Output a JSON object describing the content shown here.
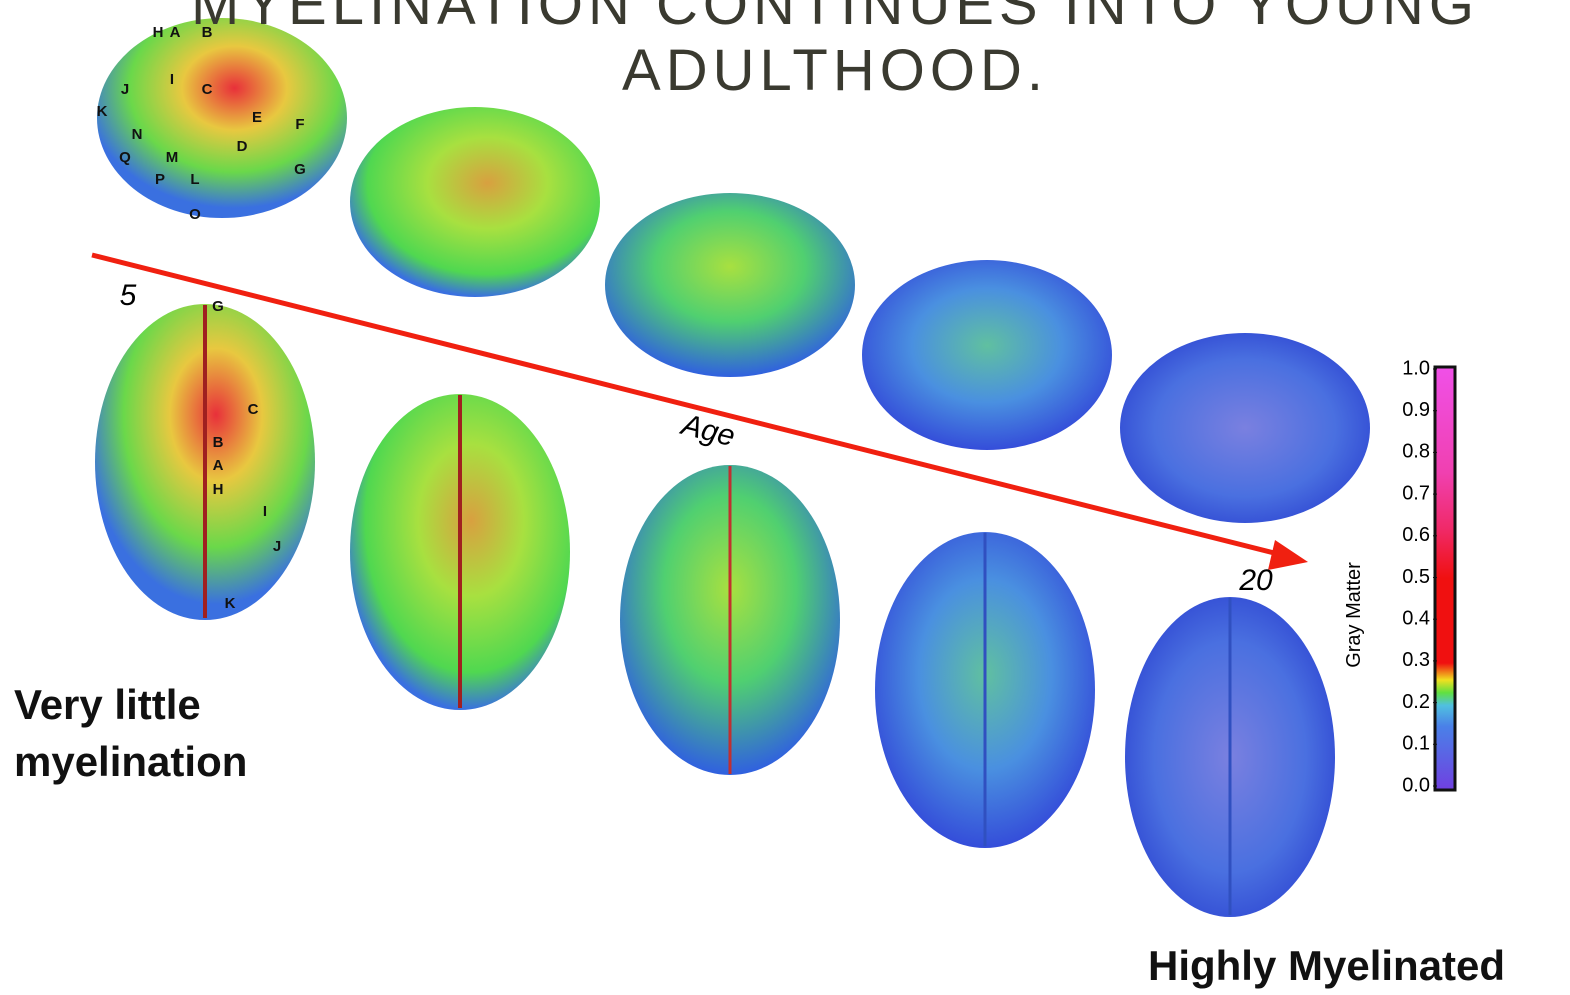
{
  "title": "MYELINATION CONTINUES INTO YOUNG ADULTHOOD.",
  "arrow": {
    "start_label": "5",
    "axis_label": "Age",
    "end_label": "20"
  },
  "lateral_labels": [
    "H",
    "A",
    "B",
    "J",
    "I",
    "C",
    "K",
    "E",
    "F",
    "N",
    "D",
    "Q",
    "M",
    "G",
    "P",
    "L",
    "O"
  ],
  "dorsal_labels": [
    "G",
    "C",
    "B",
    "A",
    "H",
    "I",
    "J",
    "K"
  ],
  "left_caption": "Very little myelination",
  "right_caption": "Highly Myelinated",
  "colorbar": {
    "label": "Gray Matter",
    "lim": [
      0,
      1
    ],
    "ticks": [
      {
        "value": 1,
        "label": "1.0"
      },
      {
        "value": 0.9,
        "label": "0.9"
      },
      {
        "value": 0.8,
        "label": "0.8"
      },
      {
        "value": 0.7,
        "label": "0.7"
      },
      {
        "value": 0.6,
        "label": "0.6"
      },
      {
        "value": 0.5,
        "label": "0.5"
      },
      {
        "value": 0.4,
        "label": "0.4"
      },
      {
        "value": 0.3,
        "label": "0.3"
      },
      {
        "value": 0.2,
        "label": "0.2"
      },
      {
        "value": 0.1,
        "label": "0.1"
      },
      {
        "value": 0,
        "label": "0.0"
      }
    ]
  }
}
